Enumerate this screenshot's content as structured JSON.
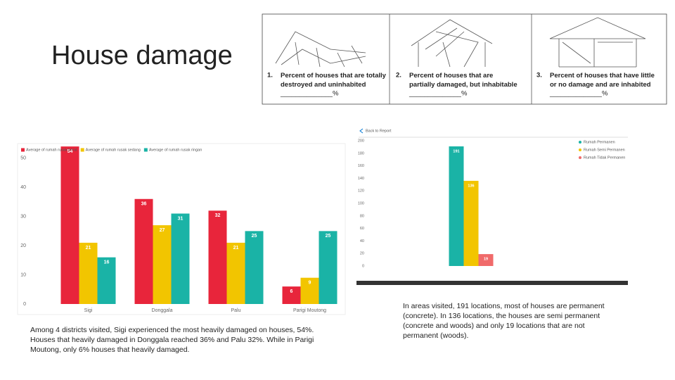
{
  "title": "House damage",
  "survey_panel": {
    "items": [
      {
        "number": "1.",
        "text": "Percent of houses that are totally destroyed and uninhabited",
        "blank": "______________%"
      },
      {
        "number": "2.",
        "text": "Percent of houses that are partially damaged, but inhabitable",
        "blank": "______________%"
      },
      {
        "number": "3.",
        "text": "Percent of houses that have little or no damage and are inhabited",
        "blank": "______________%"
      }
    ]
  },
  "chart_data": [
    {
      "type": "bar",
      "categories": [
        "Sigi",
        "Donggala",
        "Palu",
        "Parigi Moutong"
      ],
      "series": [
        {
          "name": "Average of rumah rusak berat",
          "color": "#e8253b",
          "values": [
            54,
            36,
            32,
            6
          ]
        },
        {
          "name": "Average of rumah rusak sedang",
          "color": "#f2c500",
          "values": [
            21,
            27,
            21,
            9
          ]
        },
        {
          "name": "Average of rumah rusak ringan",
          "color": "#1ab3a6",
          "values": [
            16,
            31,
            25,
            25
          ]
        }
      ],
      "ylim": [
        0,
        55
      ],
      "yticks": [
        0,
        10,
        20,
        30,
        40,
        50
      ],
      "legend": "top-left"
    },
    {
      "type": "bar",
      "header": "Back to Report",
      "categories": [
        null
      ],
      "series": [
        {
          "name": "Rumah Permanen",
          "color": "#1ab3a6",
          "values": [
            191
          ]
        },
        {
          "name": "Rumah Semi Permanen",
          "color": "#f2c500",
          "values": [
            136
          ]
        },
        {
          "name": "Rumah Tidak Permanen",
          "color": "#f06a6a",
          "values": [
            19
          ]
        }
      ],
      "ylim": [
        0,
        200
      ],
      "yticks": [
        0,
        20,
        40,
        60,
        80,
        100,
        120,
        140,
        160,
        180,
        200
      ],
      "legend": "top-right"
    }
  ],
  "captions": {
    "left": "Among 4 districts visited, Sigi experienced the most heavily damaged on houses, 54%. Houses that heavily damaged in Donggala reached 36% and Palu 32%. While in Parigi Moutong, only 6% houses that heavily damaged.",
    "right": "In areas visited, 191 locations, most of houses are permanent (concrete). In 136 locations, the houses are semi permanent (concrete and woods) and only 19 locations that are not permanent (woods)."
  }
}
